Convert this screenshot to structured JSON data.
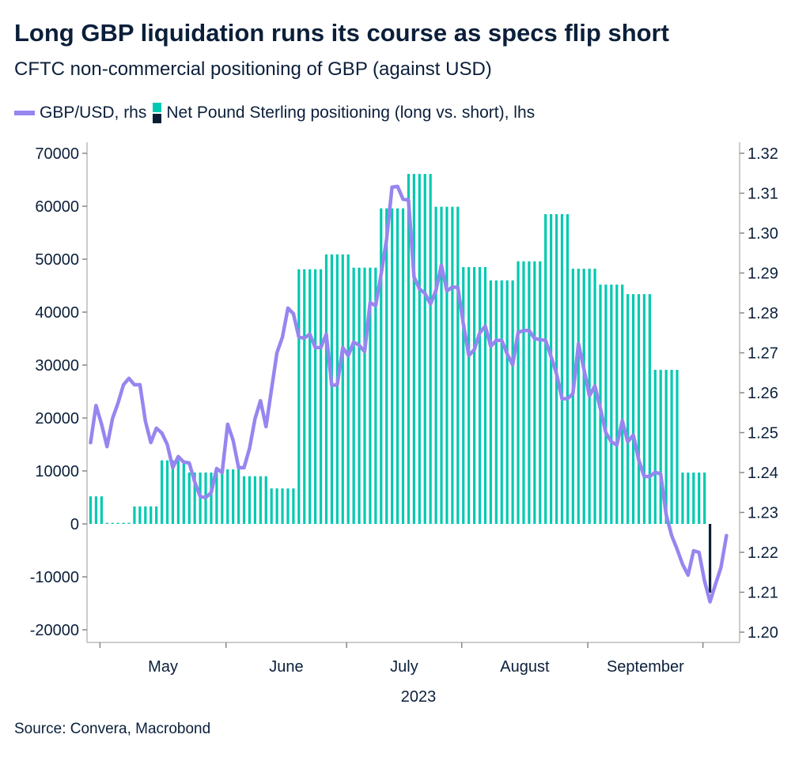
{
  "header": {
    "title": "Long GBP liquidation runs its course as specs flip short",
    "subtitle": "CFTC non-commercial positioning of GBP (against USD)"
  },
  "legend": {
    "line_label": "GBP/USD, rhs",
    "bar_label": "Net Pound Sterling positioning (long vs. short), lhs"
  },
  "footer": {
    "source": "Source: Convera, Macrobond"
  },
  "colors": {
    "positive_bar": "#00c9b1",
    "negative_bar": "#0c1e33",
    "line": "#9785f0",
    "text": "#0b1f3a"
  },
  "chart_data": {
    "type": "bar+line",
    "legend_position": "top-left",
    "grid": false,
    "x_axis": {
      "tick_labels": [
        "May",
        "June",
        "July",
        "August",
        "September"
      ],
      "year_label": "2023"
    },
    "y_left": {
      "ylim": [
        -20000,
        70000
      ],
      "ticks": [
        "70000",
        "60000",
        "50000",
        "40000",
        "30000",
        "20000",
        "10000",
        "0",
        "-10000",
        "-20000"
      ]
    },
    "y_right": {
      "ylim": [
        1.2,
        1.32
      ],
      "ticks": [
        "1.32",
        "1.31",
        "1.30",
        "1.29",
        "1.28",
        "1.27",
        "1.26",
        "1.25",
        "1.24",
        "1.23",
        "1.22",
        "1.21",
        "1.20"
      ]
    },
    "bars": {
      "name": "Net Pound Sterling positioning (long vs. short), lhs",
      "axis": "left",
      "weeks": [
        "2023-04-25",
        "2023-05-02",
        "2023-05-09",
        "2023-05-16",
        "2023-05-23",
        "2023-05-30",
        "2023-06-06",
        "2023-06-13",
        "2023-06-20",
        "2023-06-27",
        "2023-07-04",
        "2023-07-11",
        "2023-07-18",
        "2023-07-25",
        "2023-08-01",
        "2023-08-08",
        "2023-08-15",
        "2023-08-22",
        "2023-08-29",
        "2023-09-05",
        "2023-09-12",
        "2023-09-19",
        "2023-09-26",
        "2023-10-03"
      ],
      "values": [
        5200,
        200,
        3300,
        12000,
        9700,
        10300,
        9000,
        6700,
        48100,
        50900,
        48400,
        59600,
        66100,
        59900,
        48500,
        46000,
        49600,
        58500,
        48200,
        45200,
        43400,
        29100,
        9700,
        -13000
      ]
    },
    "line": {
      "name": "GBP/USD, rhs",
      "axis": "right",
      "dates": [
        "2023-04-27",
        "2023-04-28",
        "2023-05-01",
        "2023-05-02",
        "2023-05-03",
        "2023-05-04",
        "2023-05-05",
        "2023-05-08",
        "2023-05-09",
        "2023-05-10",
        "2023-05-11",
        "2023-05-12",
        "2023-05-15",
        "2023-05-16",
        "2023-05-17",
        "2023-05-18",
        "2023-05-19",
        "2023-05-22",
        "2023-05-23",
        "2023-05-24",
        "2023-05-25",
        "2023-05-26",
        "2023-05-29",
        "2023-05-30",
        "2023-05-31",
        "2023-06-01",
        "2023-06-02",
        "2023-06-05",
        "2023-06-06",
        "2023-06-07",
        "2023-06-08",
        "2023-06-09",
        "2023-06-12",
        "2023-06-13",
        "2023-06-14",
        "2023-06-15",
        "2023-06-16",
        "2023-06-19",
        "2023-06-20",
        "2023-06-21",
        "2023-06-22",
        "2023-06-23",
        "2023-06-26",
        "2023-06-27",
        "2023-06-28",
        "2023-06-29",
        "2023-06-30",
        "2023-07-03",
        "2023-07-04",
        "2023-07-05",
        "2023-07-06",
        "2023-07-07",
        "2023-07-10",
        "2023-07-11",
        "2023-07-12",
        "2023-07-13",
        "2023-07-14",
        "2023-07-17",
        "2023-07-18",
        "2023-07-19",
        "2023-07-20",
        "2023-07-21",
        "2023-07-24",
        "2023-07-25",
        "2023-07-26",
        "2023-07-27",
        "2023-07-28",
        "2023-07-31",
        "2023-08-01",
        "2023-08-02",
        "2023-08-03",
        "2023-08-04",
        "2023-08-07",
        "2023-08-08",
        "2023-08-09",
        "2023-08-10",
        "2023-08-11",
        "2023-08-14",
        "2023-08-15",
        "2023-08-16",
        "2023-08-17",
        "2023-08-18",
        "2023-08-21",
        "2023-08-22",
        "2023-08-23",
        "2023-08-24",
        "2023-08-25",
        "2023-08-28",
        "2023-08-29",
        "2023-08-30",
        "2023-08-31",
        "2023-09-01",
        "2023-09-04",
        "2023-09-05",
        "2023-09-06",
        "2023-09-07",
        "2023-09-08",
        "2023-09-11",
        "2023-09-12",
        "2023-09-13",
        "2023-09-14",
        "2023-09-15",
        "2023-09-18",
        "2023-09-19",
        "2023-09-20",
        "2023-09-21",
        "2023-09-22",
        "2023-09-25",
        "2023-09-26",
        "2023-09-27",
        "2023-09-28",
        "2023-09-29",
        "2023-10-02",
        "2023-10-03",
        "2023-10-04",
        "2023-10-05",
        "2023-10-06"
      ],
      "values": [
        1.2475,
        1.2568,
        1.2521,
        1.2465,
        1.2535,
        1.2574,
        1.262,
        1.2636,
        1.262,
        1.262,
        1.2529,
        1.2475,
        1.2511,
        1.2499,
        1.247,
        1.2412,
        1.244,
        1.2426,
        1.2424,
        1.2376,
        1.234,
        1.2337,
        1.235,
        1.241,
        1.24,
        1.2521,
        1.2481,
        1.2412,
        1.2412,
        1.2461,
        1.2535,
        1.258,
        1.2515,
        1.2608,
        1.27,
        1.2739,
        1.2812,
        1.2798,
        1.2739,
        1.2737,
        1.2747,
        1.2713,
        1.2713,
        1.2747,
        1.2618,
        1.262,
        1.2713,
        1.2693,
        1.2727,
        1.2719,
        1.2703,
        1.2826,
        1.2818,
        1.2897,
        1.2984,
        1.3115,
        1.3117,
        1.3085,
        1.3083,
        1.289,
        1.286,
        1.2849,
        1.2822,
        1.2856,
        1.292,
        1.2855,
        1.2865,
        1.2864,
        1.2773,
        1.2693,
        1.2708,
        1.275,
        1.2767,
        1.2716,
        1.2731,
        1.2731,
        1.2697,
        1.267,
        1.2751,
        1.2756,
        1.2756,
        1.2736,
        1.2733,
        1.2731,
        1.2691,
        1.2648,
        1.2585,
        1.2585,
        1.2598,
        1.2723,
        1.2659,
        1.2592,
        1.2617,
        1.256,
        1.25,
        1.2477,
        1.2469,
        1.253,
        1.2477,
        1.2494,
        1.2431,
        1.239,
        1.239,
        1.2401,
        1.2396,
        1.2295,
        1.2242,
        1.2208,
        1.217,
        1.2143,
        1.2204,
        1.22,
        1.2128,
        1.2076,
        1.212,
        1.2162,
        1.2242
      ]
    }
  }
}
